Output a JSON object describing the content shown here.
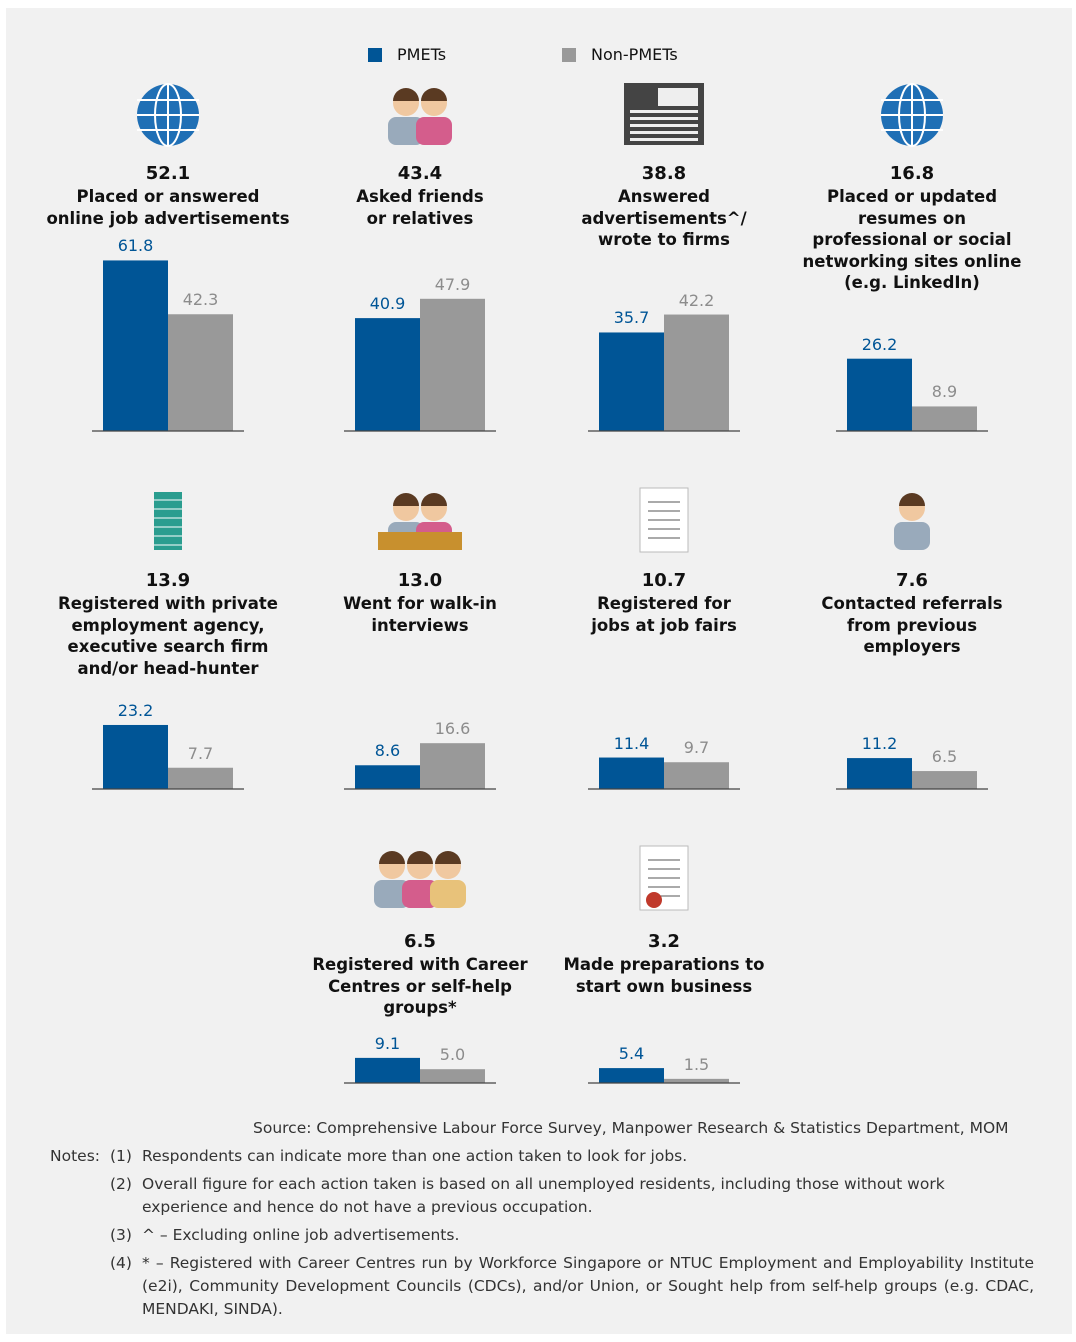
{
  "chart_data": {
    "type": "bar",
    "categories": [
      "Placed or answered\nonline job advertisements",
      "Asked friends\nor relatives",
      "Answered\nadvertisements^/\nwrote to firms",
      "Placed or updated\nresumes on\nprofessional or social\nnetworking sites online\n(e.g. LinkedIn)",
      "Registered with private\nemployment agency,\nexecutive search firm\nand/or head-hunter",
      "Went for walk-in\ninterviews",
      "Registered for\njobs at job fairs",
      "Contacted referrals\nfrom previous\nemployers",
      "Registered with Career\nCentres or self-help\ngroups*",
      "Made preparations to\nstart own business"
    ],
    "overall": [
      52.1,
      43.4,
      38.8,
      16.8,
      13.9,
      {
        "value": 13.0,
        "label": "13.0"
      },
      10.7,
      7.6,
      6.5,
      3.2
    ],
    "series": [
      {
        "name": "PMETs",
        "color": "#005596",
        "values": [
          61.8,
          40.9,
          35.7,
          26.2,
          23.2,
          8.6,
          11.4,
          11.2,
          9.1,
          5.4
        ]
      },
      {
        "name": "Non-PMETs",
        "color": "#999999",
        "values": [
          42.3,
          47.9,
          42.2,
          8.9,
          7.7,
          16.6,
          9.7,
          6.5,
          {
            "value": 5.0,
            "label": "5.0"
          },
          1.5
        ]
      }
    ],
    "source": "Source: Comprehensive Labour Force Survey, Manpower Research & Statistics Department, MOM"
  },
  "notes": {
    "label": "Notes:",
    "items": [
      {
        "number": "(1)",
        "text": "Respondents can indicate more than one action taken to look for jobs."
      },
      {
        "number": "(2)",
        "text": "Overall figure for each action taken is based on all unemployed residents, including those without work experience and hence do not have a previous occupation."
      },
      {
        "number": "(3)",
        "text": "^ –  Excluding online job advertisements."
      },
      {
        "number": "(4)",
        "text": "* –  Registered with Career Centres run by Workforce Singapore or NTUC Employment and Employability Institute (e2i), Community Development Councils (CDCs), and/or Union, or Sought help from self-help groups (e.g. CDAC, MENDAKI, SINDA)."
      }
    ]
  }
}
